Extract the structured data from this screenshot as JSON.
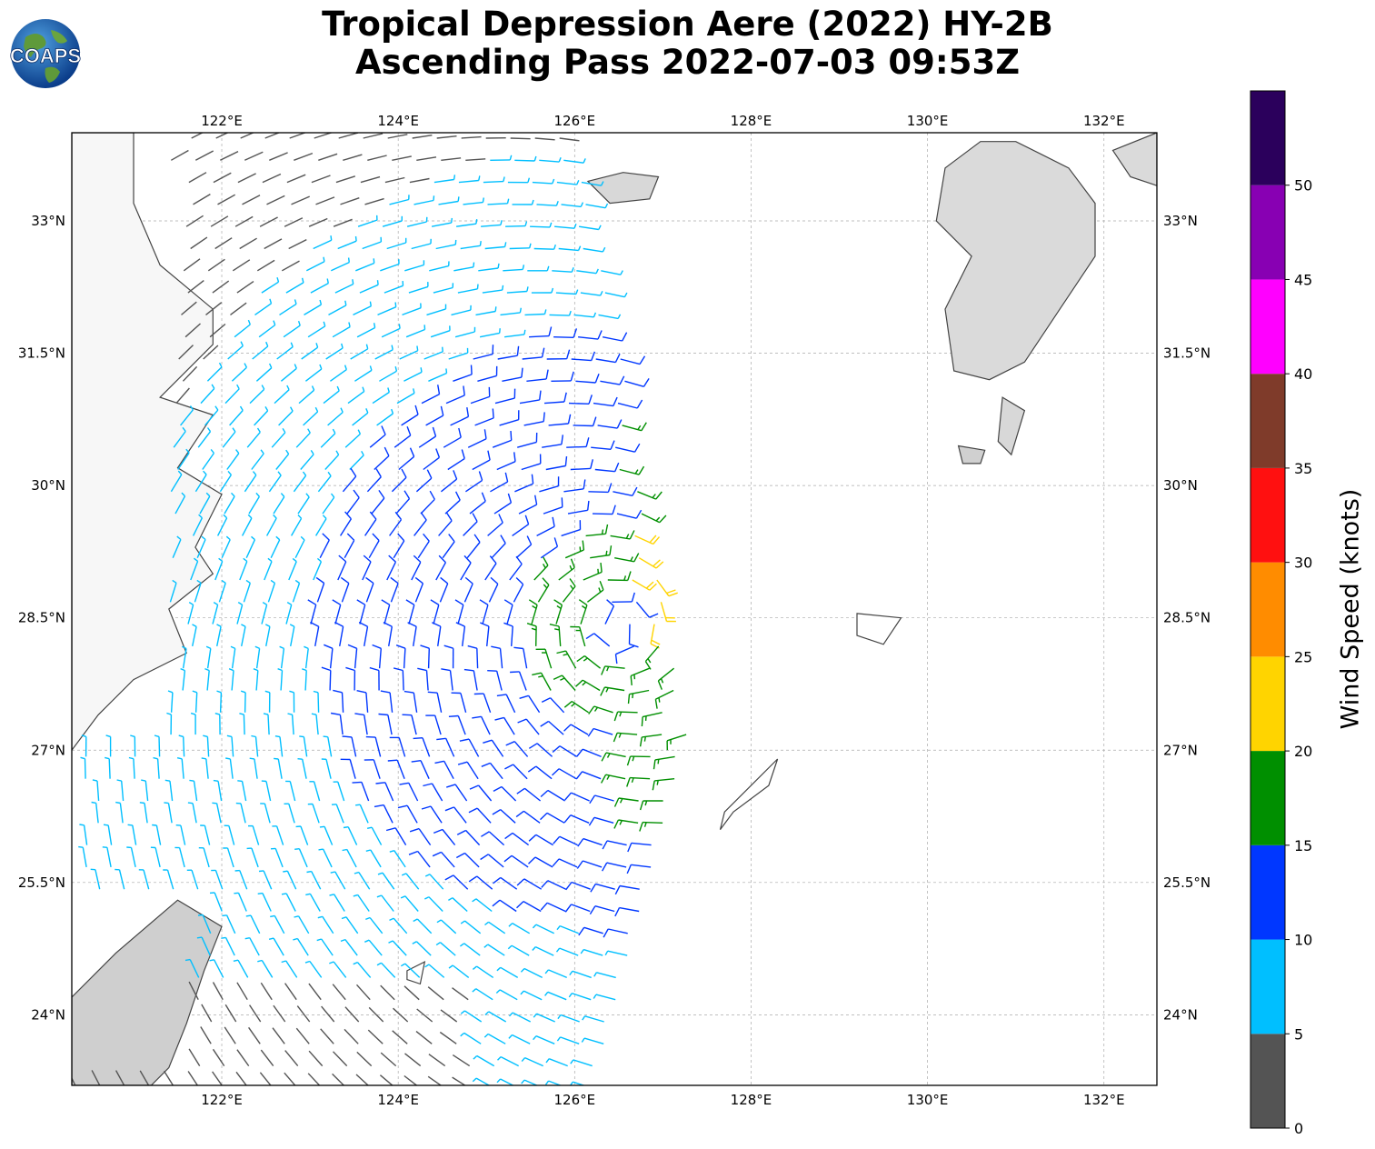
{
  "title": {
    "line1": "Tropical Depression Aere (2022) HY-2B",
    "line2": "Ascending Pass 2022-07-03 09:53Z"
  },
  "logo": {
    "text": "COAPS",
    "icon": "globe-logo-icon"
  },
  "map": {
    "lon_range": [
      120.3,
      132.6
    ],
    "lat_range": [
      23.2,
      34.0
    ],
    "lon_ticks": [
      "122°E",
      "124°E",
      "126°E",
      "128°E",
      "130°E",
      "132°E"
    ],
    "lat_ticks": [
      "33°N",
      "31.5°N",
      "30°N",
      "28.5°N",
      "27°N",
      "25.5°N",
      "24°N"
    ],
    "storm_center": {
      "lon": 126.5,
      "lat": 28.4
    },
    "gridlines": true,
    "land_color": "#f2f2f2",
    "coast_color": "#444444"
  },
  "colorbar": {
    "label": "Wind Speed (knots)",
    "ticks": [
      "0",
      "5",
      "10",
      "15",
      "20",
      "25",
      "30",
      "35",
      "40",
      "45",
      "50"
    ],
    "bins": [
      {
        "min": 0,
        "max": 5,
        "color": "#545454"
      },
      {
        "min": 5,
        "max": 10,
        "color": "#00bfff"
      },
      {
        "min": 10,
        "max": 15,
        "color": "#0037ff"
      },
      {
        "min": 15,
        "max": 20,
        "color": "#008f00"
      },
      {
        "min": 20,
        "max": 25,
        "color": "#ffd400"
      },
      {
        "min": 25,
        "max": 30,
        "color": "#ff8c00"
      },
      {
        "min": 30,
        "max": 35,
        "color": "#ff1010"
      },
      {
        "min": 35,
        "max": 40,
        "color": "#7f3b2a"
      },
      {
        "min": 40,
        "max": 45,
        "color": "#ff00ff"
      },
      {
        "min": 45,
        "max": 50,
        "color": "#8800b3"
      },
      {
        "min": 50,
        "max": 55,
        "color": "#2b005c"
      }
    ]
  }
}
